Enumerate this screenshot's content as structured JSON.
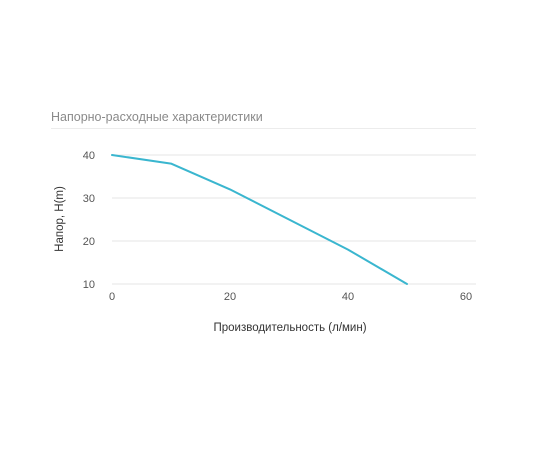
{
  "chart_data": {
    "type": "line",
    "title": "Напорно-расходные характеристики",
    "xlabel": "Производительность (л/мин)",
    "ylabel": "Напор, H(m)",
    "xlim": [
      0,
      60
    ],
    "ylim": [
      10,
      40
    ],
    "x_ticks": [
      0,
      20,
      40,
      60
    ],
    "y_ticks": [
      10,
      20,
      30,
      40
    ],
    "grid": true,
    "color": "#3ab6cf",
    "series": [
      {
        "x": [
          0,
          10,
          20,
          30,
          40,
          50
        ],
        "values": [
          40,
          38,
          32,
          25,
          18,
          10
        ]
      }
    ]
  }
}
